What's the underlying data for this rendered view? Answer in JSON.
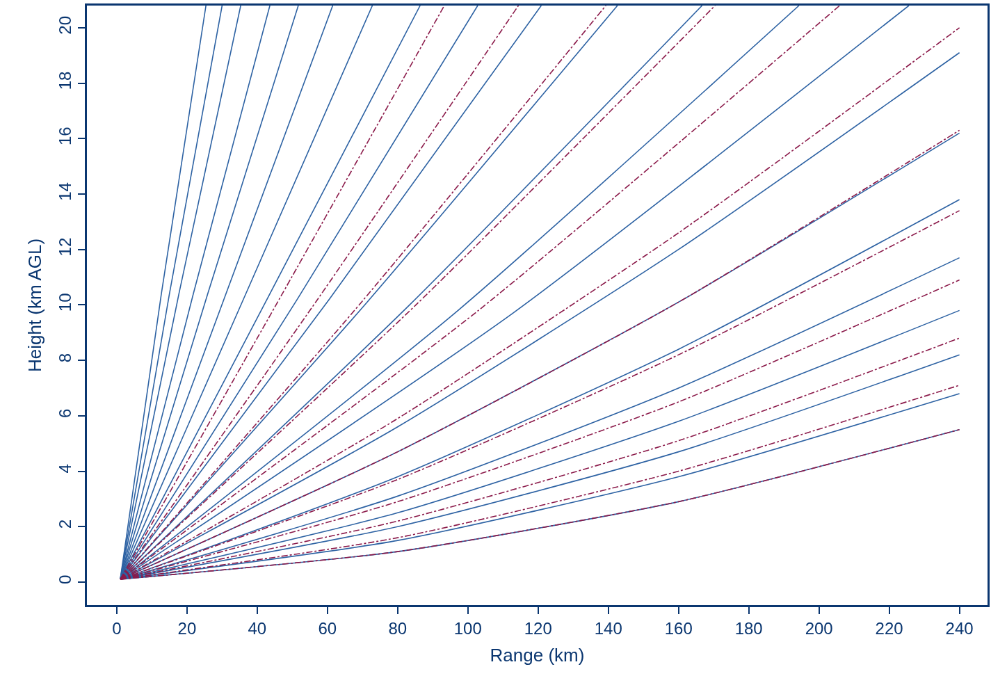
{
  "chart_data": {
    "type": "line",
    "xlabel": "Range (km)",
    "ylabel": "Height (km AGL)",
    "xlim": [
      -8.5,
      248
    ],
    "ylim": [
      -0.83,
      20.8
    ],
    "xticks": [
      0,
      20,
      40,
      60,
      80,
      100,
      120,
      140,
      160,
      180,
      200,
      220,
      240
    ],
    "yticks": [
      0,
      2,
      4,
      6,
      8,
      10,
      12,
      14,
      16,
      18,
      20
    ],
    "series": [
      {
        "color": "#2d62a3",
        "line_style": "solid",
        "x": [
          1,
          12.7,
          25.4
        ],
        "values": [
          0.1,
          10.4,
          20.8
        ]
      },
      {
        "color": "#2d62a3",
        "line_style": "solid",
        "x": [
          1,
          15,
          30
        ],
        "values": [
          0.1,
          10.4,
          20.8
        ]
      },
      {
        "color": "#2d62a3",
        "line_style": "solid",
        "x": [
          1,
          17.7,
          35.3
        ],
        "values": [
          0.1,
          10.4,
          20.8
        ]
      },
      {
        "color": "#2d62a3",
        "line_style": "solid",
        "x": [
          1,
          21.8,
          43.6
        ],
        "values": [
          0.1,
          10.4,
          20.8
        ]
      },
      {
        "color": "#2d62a3",
        "line_style": "solid",
        "x": [
          1,
          25.9,
          51.7
        ],
        "values": [
          0.1,
          10.4,
          20.8
        ]
      },
      {
        "color": "#2d62a3",
        "line_style": "solid",
        "x": [
          1,
          30.8,
          61.5
        ],
        "values": [
          0.1,
          10.3,
          20.8
        ]
      },
      {
        "color": "#2d62a3",
        "line_style": "solid",
        "x": [
          1,
          36.4,
          72.8
        ],
        "values": [
          0.1,
          10.3,
          20.8
        ]
      },
      {
        "color": "#2d62a3",
        "line_style": "solid",
        "x": [
          1,
          43.2,
          86.4
        ],
        "values": [
          0.1,
          10.3,
          20.8
        ]
      },
      {
        "color": "#2d62a3",
        "line_style": "solid",
        "x": [
          1,
          51.4,
          102.8
        ],
        "values": [
          0.1,
          10.2,
          20.8
        ]
      },
      {
        "color": "#2d62a3",
        "line_style": "solid",
        "x": [
          1,
          60.5,
          120.9
        ],
        "values": [
          0.1,
          10.2,
          20.8
        ]
      },
      {
        "color": "#2d62a3",
        "line_style": "solid",
        "x": [
          1,
          71.3,
          142.6
        ],
        "values": [
          0.1,
          10.1,
          20.8
        ]
      },
      {
        "color": "#2d62a3",
        "line_style": "solid",
        "x": [
          1,
          83.4,
          166.7
        ],
        "values": [
          0.1,
          10.0,
          20.8
        ]
      },
      {
        "color": "#2d62a3",
        "line_style": "solid",
        "x": [
          1,
          97.2,
          194.3
        ],
        "values": [
          0.1,
          9.8,
          20.8
        ]
      },
      {
        "color": "#2d62a3",
        "line_style": "solid",
        "x": [
          1,
          112.8,
          225.6
        ],
        "values": [
          0.1,
          9.7,
          20.8
        ]
      },
      {
        "color": "#2d62a3",
        "line_style": "solid",
        "x": [
          1,
          80,
          160,
          240
        ],
        "values": [
          0.1,
          5.6,
          12.0,
          19.1
        ]
      },
      {
        "color": "#2d62a3",
        "line_style": "solid",
        "x": [
          1,
          80,
          160,
          240
        ],
        "values": [
          0.1,
          4.7,
          10.1,
          16.2
        ]
      },
      {
        "color": "#2d62a3",
        "line_style": "solid",
        "x": [
          1,
          80,
          160,
          240
        ],
        "values": [
          0.1,
          3.8,
          8.4,
          13.8
        ]
      },
      {
        "color": "#2d62a3",
        "line_style": "solid",
        "x": [
          1,
          80,
          160,
          240
        ],
        "values": [
          0.1,
          3.1,
          7.0,
          11.7
        ]
      },
      {
        "color": "#2d62a3",
        "line_style": "solid",
        "x": [
          1,
          80,
          160,
          240
        ],
        "values": [
          0.1,
          2.5,
          5.8,
          9.8
        ]
      },
      {
        "color": "#2d62a3",
        "line_style": "solid",
        "x": [
          1,
          80,
          160,
          240
        ],
        "values": [
          0.1,
          2.0,
          4.7,
          8.2
        ]
      },
      {
        "color": "#2d62a3",
        "line_style": "solid",
        "x": [
          1,
          80,
          160,
          240
        ],
        "values": [
          0.1,
          1.5,
          3.8,
          6.8
        ]
      },
      {
        "color": "#2d62a3",
        "line_style": "solid",
        "x": [
          1,
          80,
          160,
          240
        ],
        "values": [
          0.1,
          1.1,
          2.9,
          5.5
        ]
      },
      {
        "color": "#8b1a4a",
        "line_style": "dashdot",
        "x": [
          1,
          46.7,
          93.3
        ],
        "values": [
          0.1,
          10.3,
          20.8
        ]
      },
      {
        "color": "#8b1a4a",
        "line_style": "dashdot",
        "x": [
          1,
          57.2,
          114.4
        ],
        "values": [
          0.1,
          10.2,
          20.8
        ]
      },
      {
        "color": "#8b1a4a",
        "line_style": "dashdot",
        "x": [
          1,
          69.7,
          139.3
        ],
        "values": [
          0.1,
          10.1,
          20.8
        ]
      },
      {
        "color": "#8b1a4a",
        "line_style": "dashdot",
        "x": [
          1,
          85.2,
          170.4
        ],
        "values": [
          0.1,
          10.0,
          20.8
        ]
      },
      {
        "color": "#8b1a4a",
        "line_style": "dashdot",
        "x": [
          1,
          103,
          205.9
        ],
        "values": [
          0.1,
          9.8,
          20.8
        ]
      },
      {
        "color": "#8b1a4a",
        "line_style": "dashdot",
        "x": [
          1,
          80,
          160,
          240
        ],
        "values": [
          0.1,
          5.9,
          12.6,
          20.0
        ]
      },
      {
        "color": "#8b1a4a",
        "line_style": "dashdot",
        "x": [
          1,
          80,
          160,
          240
        ],
        "values": [
          0.1,
          4.7,
          10.1,
          16.3
        ]
      },
      {
        "color": "#8b1a4a",
        "line_style": "dashdot",
        "x": [
          1,
          80,
          160,
          240
        ],
        "values": [
          0.1,
          3.7,
          8.2,
          13.4
        ]
      },
      {
        "color": "#8b1a4a",
        "line_style": "dashdot",
        "x": [
          1,
          80,
          160,
          240
        ],
        "values": [
          0.1,
          2.9,
          6.5,
          10.9
        ]
      },
      {
        "color": "#8b1a4a",
        "line_style": "dashdot",
        "x": [
          1,
          80,
          160,
          240
        ],
        "values": [
          0.1,
          2.2,
          5.1,
          8.8
        ]
      },
      {
        "color": "#8b1a4a",
        "line_style": "dashdot",
        "x": [
          1,
          80,
          160,
          240
        ],
        "values": [
          0.1,
          1.6,
          4.0,
          7.1
        ]
      },
      {
        "color": "#8b1a4a",
        "line_style": "dashdot",
        "x": [
          1,
          80,
          160,
          240
        ],
        "values": [
          0.1,
          1.1,
          2.9,
          5.5
        ]
      }
    ]
  }
}
